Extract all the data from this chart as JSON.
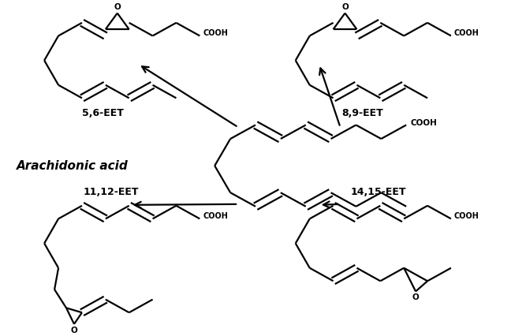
{
  "background_color": "#ffffff",
  "line_color": "#000000",
  "line_width": 1.6,
  "label_56": "5,6-EET",
  "label_89": "8,9-EET",
  "label_1112": "11,12-EET",
  "label_1415": "14,15-EET",
  "label_center": "Arachidonic acid",
  "label_cooh": "COOH",
  "label_o": "O",
  "fig_width": 6.48,
  "fig_height": 4.26,
  "xlim": [
    0,
    6.48
  ],
  "ylim": [
    0,
    4.26
  ]
}
